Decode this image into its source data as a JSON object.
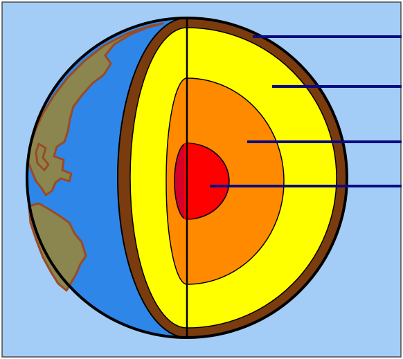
{
  "diagram": {
    "subject": "earth-interior-cross-section",
    "colors": {
      "background": "#a3cdf7",
      "ocean": "#2e86e8",
      "land": "#8b8550",
      "coastline": "#9b4a22",
      "crust": "#7a3b0f",
      "mantle": "#ffff00",
      "outer_core": "#ff8a00",
      "inner_core": "#ff0000",
      "inner_core_shadow": "#d4002a",
      "outline": "#000000",
      "pointer": "#0b0b80",
      "frame": "#4a4a4a"
    },
    "layers": [
      {
        "id": "crust",
        "color_key": "crust"
      },
      {
        "id": "mantle",
        "color_key": "mantle"
      },
      {
        "id": "outer-core",
        "color_key": "outer_core"
      },
      {
        "id": "inner-core",
        "color_key": "inner_core"
      }
    ],
    "pointer_count": 4
  }
}
